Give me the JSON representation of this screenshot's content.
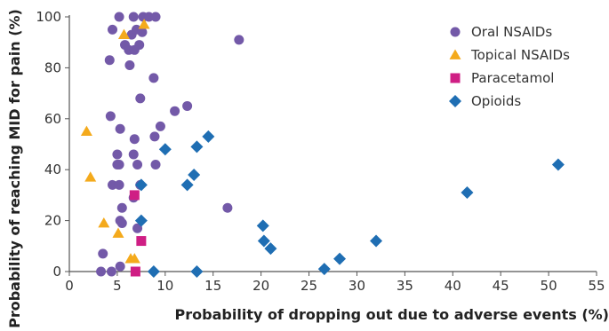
{
  "chart_data": {
    "type": "scatter",
    "title": "",
    "xlabel": "Probability of dropping out due to adverse events (%)",
    "ylabel": "Probability of reaching MID for pain (%)",
    "xlim": [
      0,
      55
    ],
    "ylim": [
      0,
      100
    ],
    "x_ticks": [
      0,
      5,
      10,
      15,
      20,
      25,
      30,
      35,
      40,
      45,
      50,
      55
    ],
    "y_ticks": [
      0,
      20,
      40,
      60,
      80,
      100
    ],
    "grid": false,
    "legend_position": "top-right",
    "series": [
      {
        "name": "Oral NSAIDs",
        "marker": "circle",
        "color": "#7359a8",
        "points": [
          [
            5.2,
            100
          ],
          [
            6.7,
            100
          ],
          [
            7.7,
            100
          ],
          [
            8.3,
            100
          ],
          [
            9.0,
            100
          ],
          [
            4.5,
            95
          ],
          [
            6.5,
            93
          ],
          [
            7.0,
            95
          ],
          [
            7.6,
            94
          ],
          [
            17.7,
            91
          ],
          [
            5.8,
            89
          ],
          [
            7.3,
            89
          ],
          [
            6.2,
            87
          ],
          [
            6.8,
            87
          ],
          [
            4.2,
            83
          ],
          [
            6.3,
            81
          ],
          [
            8.8,
            76
          ],
          [
            7.4,
            68
          ],
          [
            11.0,
            63
          ],
          [
            12.3,
            65
          ],
          [
            4.3,
            61
          ],
          [
            9.5,
            57
          ],
          [
            5.3,
            56
          ],
          [
            6.8,
            52
          ],
          [
            8.9,
            53
          ],
          [
            5.0,
            46
          ],
          [
            6.7,
            46
          ],
          [
            5.0,
            42
          ],
          [
            5.2,
            42
          ],
          [
            7.1,
            42
          ],
          [
            9.0,
            42
          ],
          [
            4.5,
            34
          ],
          [
            5.2,
            34
          ],
          [
            7.4,
            34
          ],
          [
            6.7,
            29
          ],
          [
            16.5,
            25
          ],
          [
            5.5,
            25
          ],
          [
            5.3,
            20
          ],
          [
            5.5,
            19
          ],
          [
            7.1,
            17
          ],
          [
            3.5,
            7
          ],
          [
            3.3,
            0
          ],
          [
            4.4,
            0
          ],
          [
            5.3,
            2
          ]
        ]
      },
      {
        "name": "Topical NSAIDs",
        "marker": "triangle",
        "color": "#f4aa1c",
        "points": [
          [
            5.7,
            93
          ],
          [
            7.8,
            97
          ],
          [
            1.8,
            55
          ],
          [
            2.2,
            37
          ],
          [
            3.6,
            19
          ],
          [
            5.1,
            15
          ],
          [
            6.4,
            5
          ],
          [
            6.8,
            5
          ]
        ]
      },
      {
        "name": "Paracetamol",
        "marker": "square",
        "color": "#cf1e84",
        "points": [
          [
            6.8,
            30
          ],
          [
            7.5,
            12
          ],
          [
            6.9,
            0
          ]
        ]
      },
      {
        "name": "Opioids",
        "marker": "diamond",
        "color": "#1f6eb3",
        "points": [
          [
            14.5,
            53
          ],
          [
            13.3,
            49
          ],
          [
            10.0,
            48
          ],
          [
            13.0,
            38
          ],
          [
            12.3,
            34
          ],
          [
            7.5,
            34
          ],
          [
            7.5,
            20
          ],
          [
            51.0,
            42
          ],
          [
            41.5,
            31
          ],
          [
            20.2,
            18
          ],
          [
            20.3,
            12
          ],
          [
            21.0,
            9
          ],
          [
            32.0,
            12
          ],
          [
            28.2,
            5
          ],
          [
            26.6,
            1
          ],
          [
            8.8,
            0
          ],
          [
            13.3,
            0
          ]
        ]
      }
    ]
  }
}
